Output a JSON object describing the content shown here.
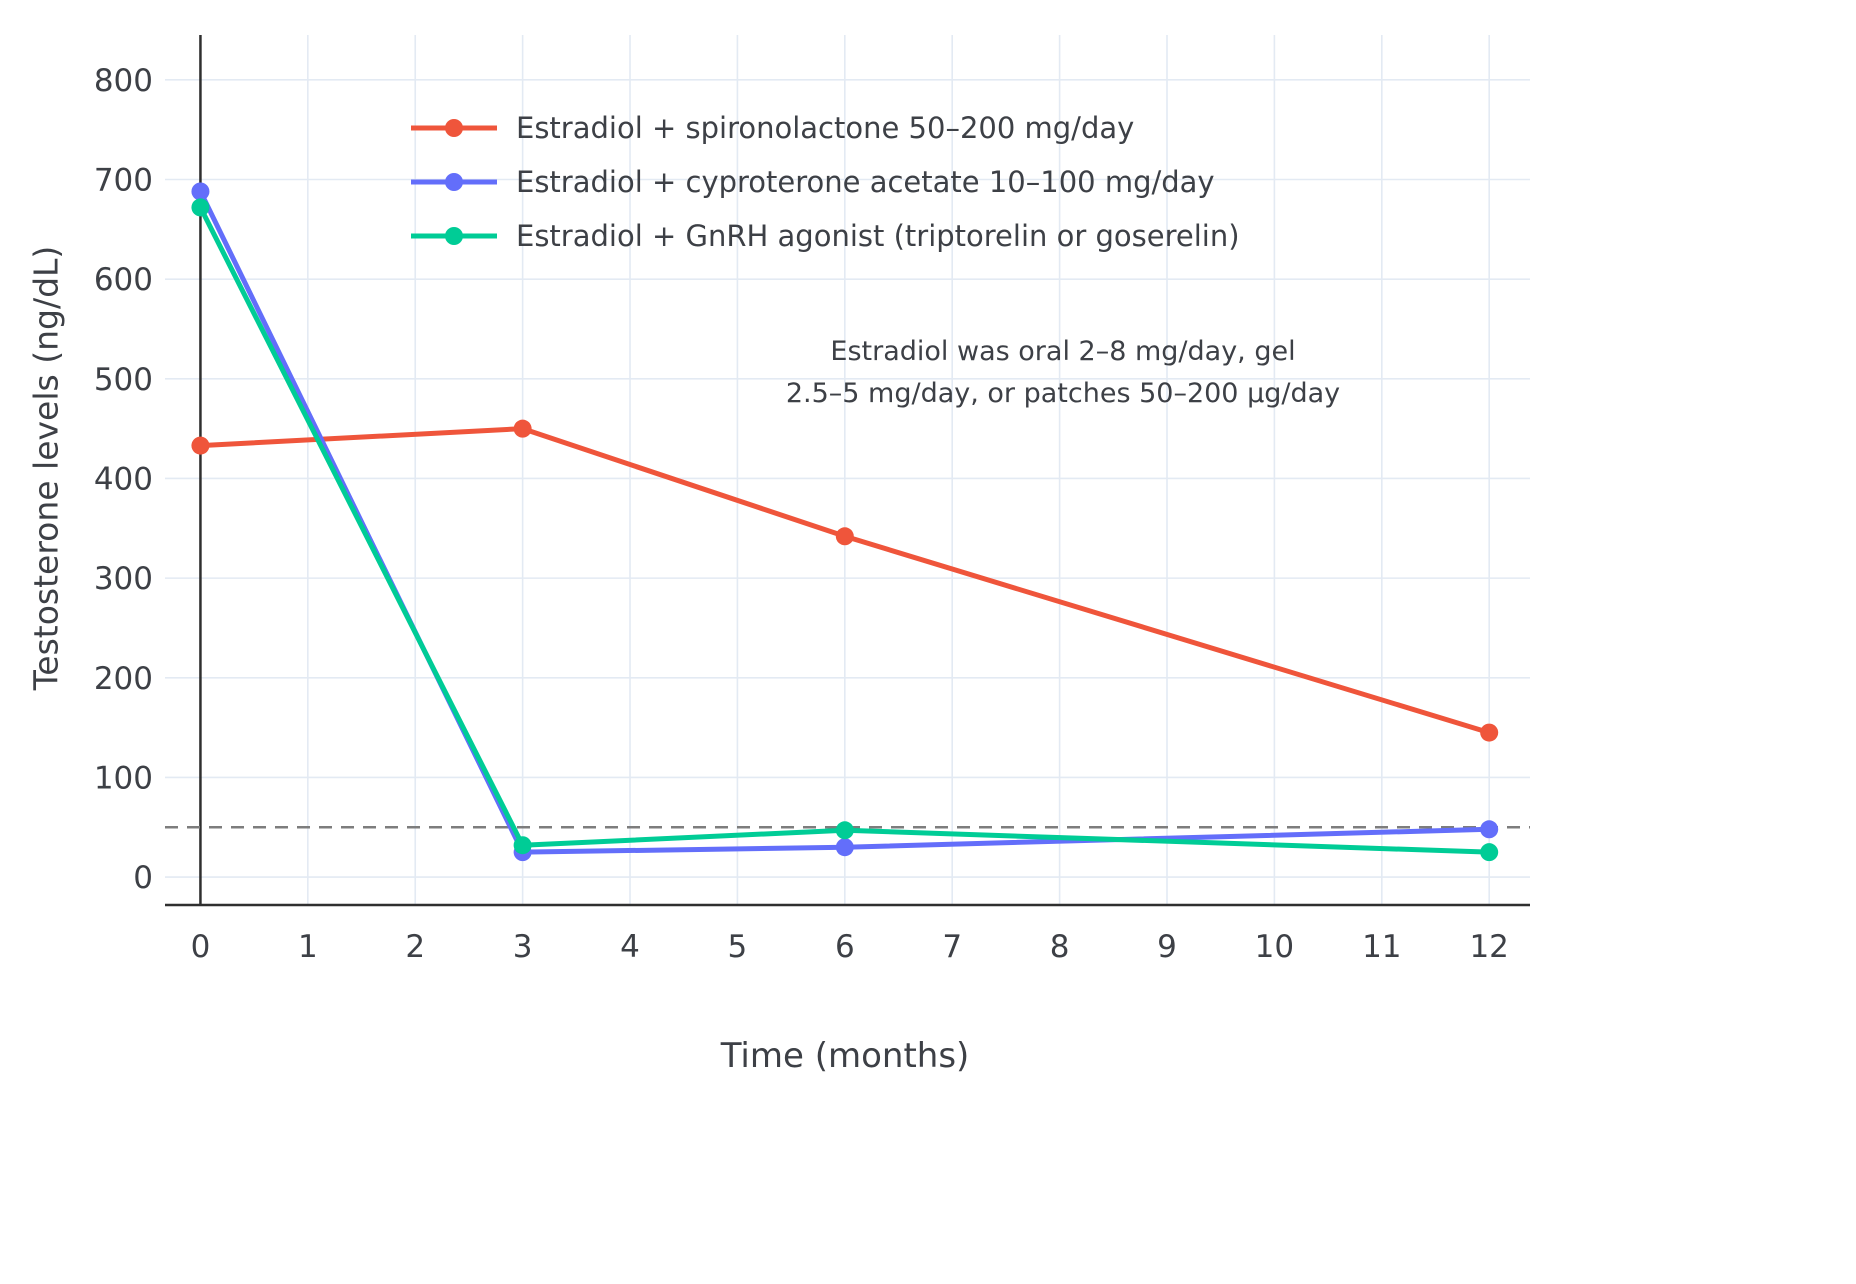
{
  "chart_data": {
    "type": "line",
    "title": "",
    "xlabel": "Time (months)",
    "ylabel": "Testosterone levels (ng/dL)",
    "x": [
      0,
      3,
      6,
      12
    ],
    "series": [
      {
        "name": "Estradiol + spironolactone 50–200 mg/day",
        "color": "#EF553B",
        "values": [
          433,
          450,
          342,
          145
        ]
      },
      {
        "name": "Estradiol + cyproterone acetate 10–100 mg/day",
        "color": "#636EFA",
        "values": [
          688,
          25,
          30,
          48
        ]
      },
      {
        "name": "Estradiol + GnRH agonist (triptorelin or goserelin)",
        "color": "#00CC96",
        "values": [
          672,
          32,
          47,
          25
        ]
      }
    ],
    "x_ticks": [
      0,
      1,
      2,
      3,
      4,
      5,
      6,
      7,
      8,
      9,
      10,
      11,
      12
    ],
    "y_ticks": [
      0,
      100,
      200,
      300,
      400,
      500,
      600,
      700,
      800
    ],
    "xlim": [
      -0.33,
      12.38
    ],
    "ylim": [
      -28,
      845
    ],
    "grid": true,
    "legend_position": "inside-top-left",
    "threshold": {
      "y": 50,
      "style": "dashed",
      "color": "#7d7d7d"
    },
    "annotation": {
      "lines": [
        "Estradiol was oral 2–8 mg/day, gel",
        "2.5–5 mg/day, or patches 50–200 µg/day"
      ]
    }
  },
  "colors": {
    "background": "#ffffff",
    "grid": "#e3eaf3",
    "axis": "#2f2f2f",
    "text": "#3d4046"
  }
}
